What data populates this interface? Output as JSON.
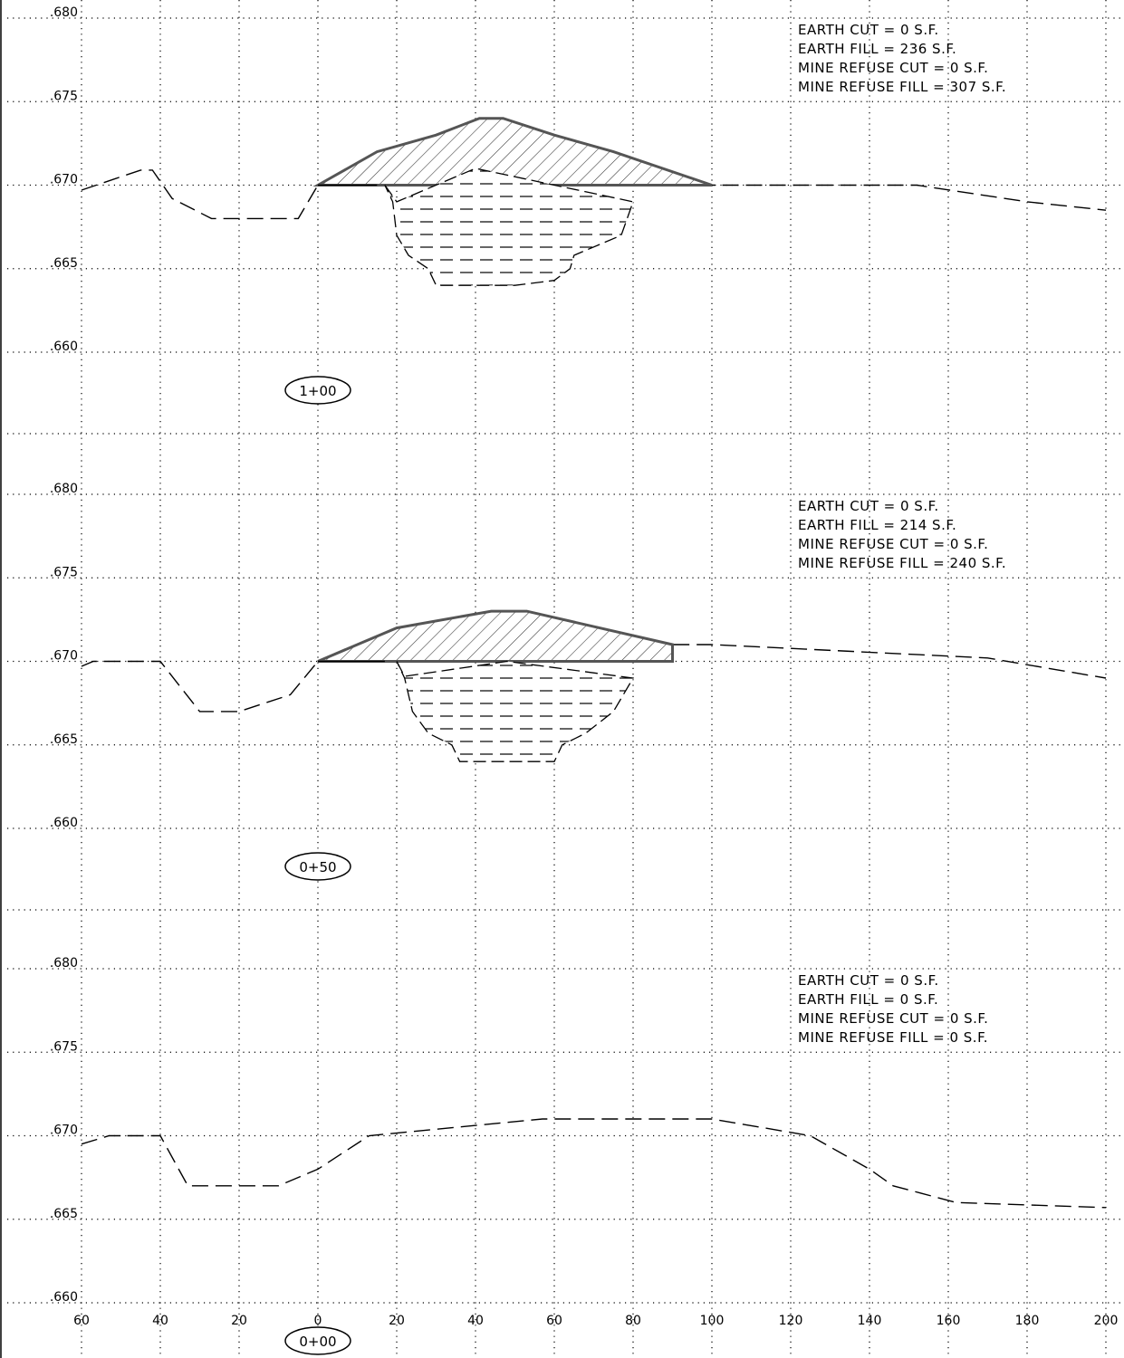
{
  "chart_data": {
    "type": "cross-sections",
    "x_axis": {
      "ticks": [
        -60,
        -40,
        -20,
        0,
        20,
        40,
        60,
        80,
        100,
        120,
        140,
        160,
        180,
        200
      ],
      "tick_labels": [
        "60",
        "40",
        "20",
        "0",
        "20",
        "40",
        "60",
        "80",
        "100",
        "120",
        "140",
        "160",
        "180",
        "200"
      ],
      "range": [
        -60,
        200
      ]
    },
    "y_axis": {
      "ticks": [
        680,
        675,
        670,
        665,
        660
      ],
      "tick_labels": [
        ".680",
        ".675",
        ".670",
        ".665",
        ".660"
      ],
      "range": [
        660,
        680
      ]
    },
    "grid": true,
    "sections": [
      {
        "station": "1+00",
        "quantities": [
          "EARTH  CUT  =  0  S.F.",
          "EARTH  FILL  =  236  S.F.",
          "MINE  REFUSE  CUT  =  0  S.F.",
          "MINE  REFUSE  FILL  =  307  S.F."
        ],
        "existing_ground": [
          [
            -60,
            669.7
          ],
          [
            -45,
            670.9
          ],
          [
            -42,
            670.9
          ],
          [
            -37,
            669.2
          ],
          [
            -27,
            668
          ],
          [
            -5,
            668
          ],
          [
            0,
            670
          ],
          [
            100,
            670
          ],
          [
            152,
            670
          ],
          [
            180,
            669
          ],
          [
            200,
            668.5
          ]
        ],
        "design_top": [
          [
            0,
            670
          ],
          [
            15,
            672
          ],
          [
            30,
            673
          ],
          [
            41,
            674
          ],
          [
            47,
            674
          ],
          [
            60,
            673
          ],
          [
            75,
            672
          ],
          [
            100,
            670
          ]
        ],
        "base_line": [
          [
            0,
            670
          ],
          [
            15,
            670
          ]
        ],
        "mine_refuse": [
          [
            17,
            670
          ],
          [
            20,
            669
          ],
          [
            40,
            671
          ],
          [
            80,
            669
          ],
          [
            77,
            667
          ],
          [
            65,
            665.8
          ],
          [
            64,
            665
          ],
          [
            60,
            664.3
          ],
          [
            50,
            664
          ],
          [
            30,
            664
          ],
          [
            28,
            665
          ],
          [
            23,
            665.8
          ],
          [
            20,
            667
          ],
          [
            19,
            669
          ]
        ]
      },
      {
        "station": "0+50",
        "quantities": [
          "EARTH  CUT  =  0  S.F.",
          "EARTH  FILL  =  214  S.F.",
          "MINE  REFUSE  CUT  =  0  S.F.",
          "MINE  REFUSE  FILL  =  240  S.F."
        ],
        "existing_ground": [
          [
            -60,
            669.7
          ],
          [
            -57,
            670
          ],
          [
            -40,
            670
          ],
          [
            -30,
            667
          ],
          [
            -20,
            667
          ],
          [
            -7,
            668
          ],
          [
            0,
            670
          ],
          [
            88,
            671
          ],
          [
            100,
            671
          ],
          [
            170,
            670.2
          ],
          [
            200,
            669
          ]
        ],
        "design_top": [
          [
            0,
            670
          ],
          [
            10,
            671
          ],
          [
            20,
            672
          ],
          [
            44,
            673
          ],
          [
            53,
            673
          ],
          [
            90,
            671
          ]
        ],
        "base_line": [
          [
            0,
            670
          ],
          [
            17,
            670
          ]
        ],
        "mine_refuse": [
          [
            20,
            670
          ],
          [
            22,
            669.1
          ],
          [
            48,
            670
          ],
          [
            80,
            669
          ],
          [
            75,
            667
          ],
          [
            68,
            665.7
          ],
          [
            62,
            665
          ],
          [
            60,
            664
          ],
          [
            36,
            664
          ],
          [
            34,
            665
          ],
          [
            28,
            665.7
          ],
          [
            24,
            667
          ],
          [
            22,
            669
          ]
        ]
      },
      {
        "station": "0+00",
        "quantities": [
          "EARTH  CUT  =  0  S.F.",
          "EARTH  FILL  =  0  S.F.",
          "MINE  REFUSE  CUT  =  0  S.F.",
          "MINE  REFUSE  FILL  =  0  S.F."
        ],
        "existing_ground": [
          [
            -60,
            669.5
          ],
          [
            -53,
            670
          ],
          [
            -40,
            670
          ],
          [
            -33,
            667
          ],
          [
            -10,
            667
          ],
          [
            0,
            668
          ],
          [
            13,
            670
          ],
          [
            57,
            671
          ],
          [
            100,
            671
          ],
          [
            125,
            670
          ],
          [
            140,
            668
          ],
          [
            146,
            667
          ],
          [
            162,
            666
          ],
          [
            200,
            665.7
          ]
        ],
        "design_top": [],
        "base_line": [],
        "mine_refuse": []
      }
    ]
  }
}
